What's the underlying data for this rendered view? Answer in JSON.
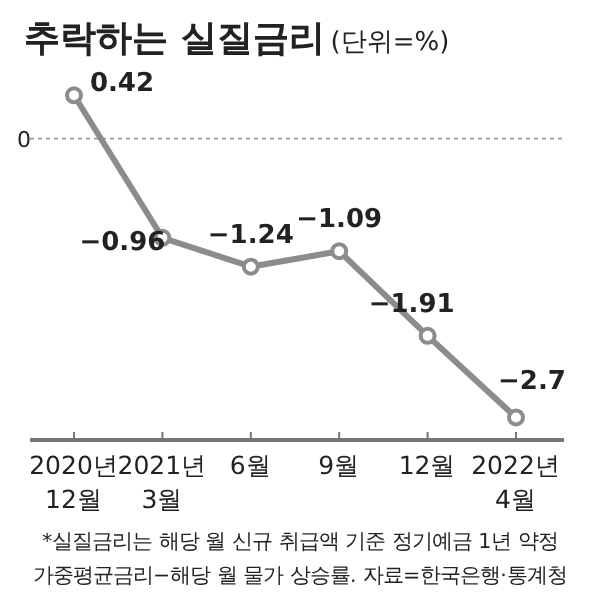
{
  "chart_data": {
    "type": "line",
    "title": "추락하는 실질금리",
    "subtitle": "(단위=%)",
    "categories": [
      "2020년\n12월",
      "2021년\n3월",
      "6월",
      "9월",
      "12월",
      "2022년\n4월"
    ],
    "series": [
      {
        "color": "#8c8c8c",
        "values": [
          0.42,
          -0.96,
          -1.24,
          -1.09,
          -1.91,
          -2.7
        ]
      }
    ],
    "ref_lines": [
      {
        "axis": "y",
        "value": 0,
        "label": "0",
        "line_style": "dotted",
        "color": "#999999"
      }
    ],
    "marker": "circle",
    "line_style": "solid",
    "data_labels": true,
    "annotations": [
      "*실질금리는 해당 월 신규 취급액 기준 정기예금 1년 약정",
      "가중평균금리−해당 월 물가 상승률. 자료=한국은행·통계청"
    ]
  }
}
